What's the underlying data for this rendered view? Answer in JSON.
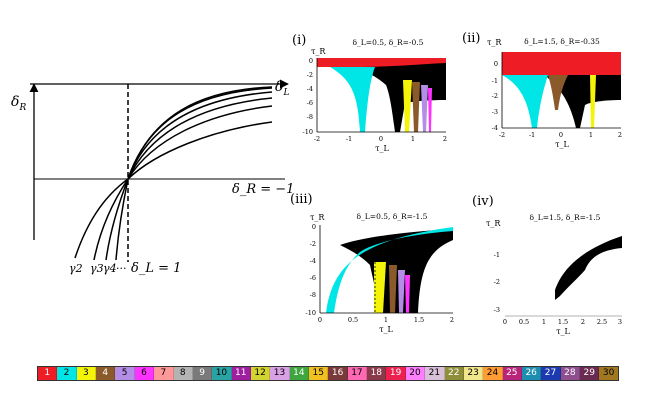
{
  "schematic": {
    "y_axis_label": "δ",
    "y_axis_sub": "R",
    "x_axis_label": "δ",
    "x_axis_sub": "L",
    "line_label": "δ_R = −1",
    "vline_label": "δ_L = 1",
    "curve_labels": [
      "γ2",
      "γ3",
      "γ4",
      "···"
    ]
  },
  "chart_data": [
    {
      "type": "heatmap",
      "panel": "(i)",
      "title": "δ_L=0.5, δ_R=-0.5",
      "xlabel": "τ_L",
      "ylabel": "τ_R",
      "xlim": [
        -2,
        2
      ],
      "ylim": [
        -10,
        1
      ],
      "xticks": [
        "-2",
        "-1",
        "0",
        "1",
        "2"
      ],
      "yticks": [
        "0",
        "-2",
        "-4",
        "-6",
        "-8",
        "-10"
      ],
      "regions": [
        {
          "period": 1,
          "description": "band above τ_R ≈ 0"
        },
        {
          "period": 2,
          "description": "cusp centred near τ_L = 0"
        },
        {
          "period": 3,
          "description": "thin tongue near τ_L ≈ 1.05"
        },
        {
          "period": 4,
          "description": "tongue near τ_L ≈ 1.35"
        }
      ]
    },
    {
      "type": "heatmap",
      "panel": "(ii)",
      "title": "δ_L=1.5, δ_R=-0.35",
      "xlabel": "τ_L",
      "ylabel": "τ_R",
      "xlim": [
        -2,
        2
      ],
      "ylim": [
        -4,
        1
      ],
      "xticks": [
        "-2",
        "-1",
        "0",
        "1",
        "2"
      ],
      "yticks": [
        "0",
        "-1",
        "-2",
        "-3",
        "-4"
      ],
      "regions": [
        {
          "period": 1,
          "description": "band above τ_R ≈ -0.35"
        },
        {
          "period": 2,
          "description": "cusp left of τ_L = 0"
        },
        {
          "period": 4,
          "description": "brown wedge near τ_L ≈ 0"
        },
        {
          "period": 3,
          "description": "thin tongue near τ_L ≈ 1"
        }
      ]
    },
    {
      "type": "heatmap",
      "panel": "(iii)",
      "title": "δ_L=0.5, δ_R=-1.5",
      "xlabel": "τ_L",
      "ylabel": "τ_R",
      "xlim": [
        0,
        2
      ],
      "ylim": [
        -10,
        0
      ],
      "xticks": [
        "0",
        "0.5",
        "1",
        "1.5",
        "2"
      ],
      "yticks": [
        "0",
        "-2",
        "-4",
        "-6",
        "-8",
        "-10"
      ],
      "regions": [
        {
          "period": 2,
          "description": "cusp starting near τ_L ≈ 0.1"
        },
        {
          "period": 3,
          "description": "tongue near τ_L ≈ 0.8"
        },
        {
          "period": 4,
          "description": "tongue near τ_L ≈ 1.0"
        },
        {
          "period": 5,
          "description": "tongue near τ_L ≈ 1.15"
        }
      ]
    },
    {
      "type": "heatmap",
      "panel": "(iv)",
      "title": "δ_L=1.5, δ_R=-1.5",
      "xlabel": "τ_L",
      "ylabel": "τ_R",
      "xlim": [
        0,
        3
      ],
      "ylim": [
        -3,
        -0.5
      ],
      "xticks": [
        "0",
        "0.5",
        "1",
        "1.5",
        "2",
        "2.5",
        "3"
      ],
      "yticks": [
        "-1",
        "-2",
        "-3"
      ],
      "regions": [
        {
          "period": 0,
          "description": "black fan-shaped region for τ_L ≳ 1.2"
        }
      ]
    }
  ],
  "legend": {
    "labels": [
      "1",
      "2",
      "3",
      "4",
      "5",
      "6",
      "7",
      "8",
      "9",
      "10",
      "11",
      "12",
      "13",
      "14",
      "15",
      "16",
      "17",
      "18",
      "19",
      "20",
      "21",
      "22",
      "23",
      "24",
      "25",
      "26",
      "27",
      "28",
      "29",
      "30"
    ],
    "colors": [
      "#ee1c24",
      "#00e5e5",
      "#f4f40a",
      "#8b5a2b",
      "#b48ee6",
      "#ff33ff",
      "#ff9999",
      "#b3b3b3",
      "#7a7a7a",
      "#29a3a3",
      "#a01fa0",
      "#d2d230",
      "#d9a0e6",
      "#3fa63f",
      "#f0c020",
      "#7a3a3a",
      "#ff69b4",
      "#8b3a4a",
      "#ee2050",
      "#ff80ff",
      "#d8c0d8",
      "#8f8f3a",
      "#f0e68c",
      "#ff9c33",
      "#b8247a",
      "#1c8fb0",
      "#1c3ab0",
      "#8f4f8f",
      "#6b2a50",
      "#a07820"
    ]
  },
  "colors": {
    "p1": "#ee1c24",
    "p2": "#00e5e5",
    "p3": "#f4f40a",
    "p4": "#8b5a2b",
    "p5": "#b48ee6",
    "p6": "#ff33ff",
    "chaos": "#000000"
  }
}
